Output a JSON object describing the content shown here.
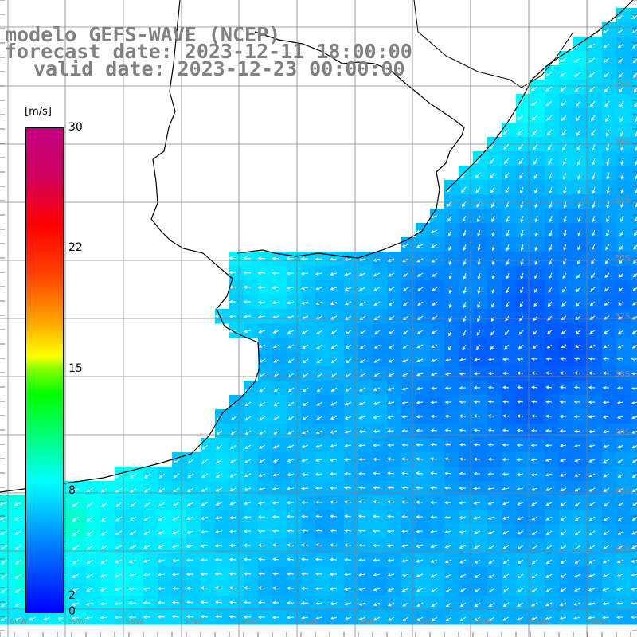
{
  "title": {
    "line1": "modelo GEFS-WAVE (NCEP)",
    "line2": "forecast date: 2023-12-11 18:00:00",
    "line3": "valid date: 2023-12-23 00:00:00"
  },
  "colorbar": {
    "unit": "[m/s]",
    "ticks": [
      "30",
      "22",
      "15",
      "8",
      "2",
      "0"
    ],
    "colors": [
      "#0000ff",
      "#0080ff",
      "#00ffff",
      "#00ff80",
      "#00ff00",
      "#ffff00",
      "#ff8000",
      "#ff0000",
      "#c00080"
    ]
  },
  "map": {
    "lat_labels": [
      "33S",
      "34S",
      "35S",
      "36S",
      "37S",
      "38S",
      "39S",
      "40S",
      "41S"
    ],
    "lon_labels": [
      "60W",
      "59W",
      "58W",
      "57W",
      "56W",
      "55W",
      "54W",
      "53W",
      "52W",
      "51W",
      "50W"
    ],
    "grid_color": "#808080",
    "land_color": "#ffffff",
    "arrow_color": "#ffffff"
  }
}
